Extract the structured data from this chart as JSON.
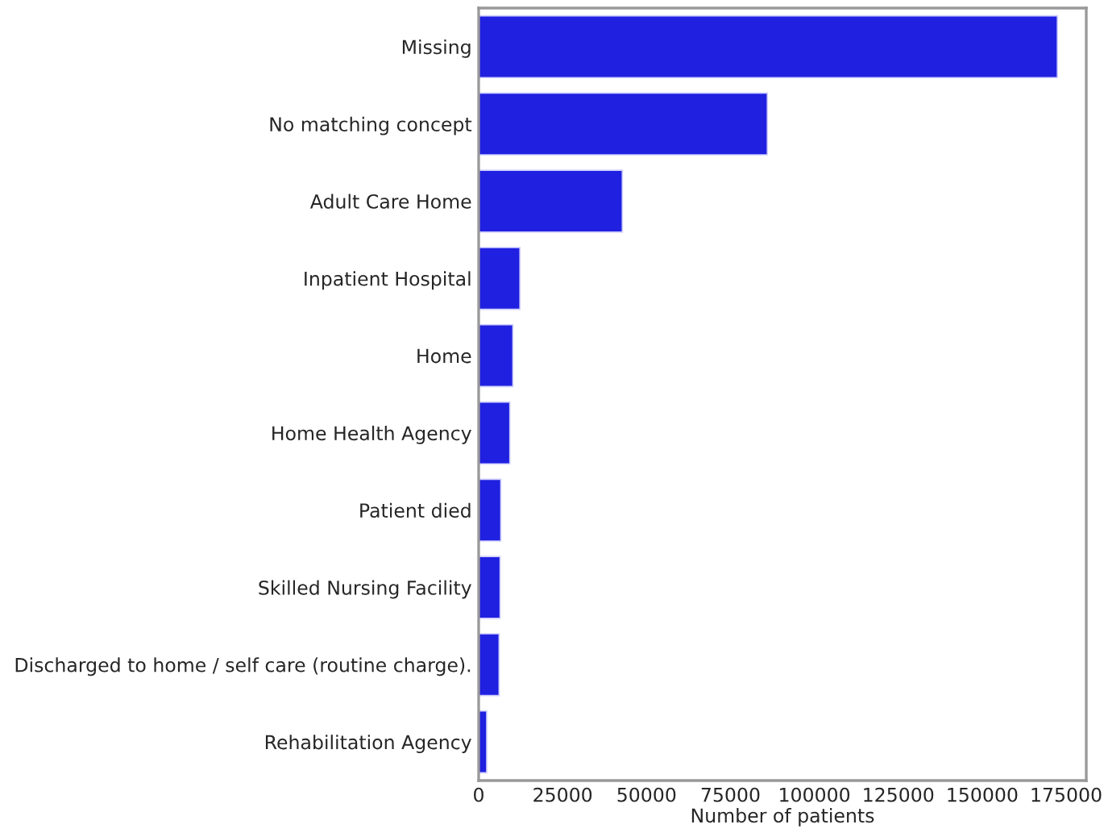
{
  "chart_data": {
    "type": "bar",
    "orientation": "horizontal",
    "xlabel": "Number of patients",
    "categories": [
      "Missing",
      "No matching concept",
      "Adult Care Home",
      "Inpatient Hospital",
      "Home",
      "Home Health Agency",
      "Patient died",
      "Skilled Nursing Facility",
      "Discharged to home / self care (routine charge).",
      "Rehabilitation Agency"
    ],
    "values": [
      172400,
      86000,
      42800,
      12300,
      10200,
      9300,
      6600,
      6400,
      6100,
      2400
    ],
    "color": "#2020e0",
    "xlim": [
      0,
      181000
    ],
    "xticks": [
      0,
      25000,
      50000,
      75000,
      100000,
      125000,
      150000,
      175000
    ],
    "grid": false,
    "legend": false
  }
}
